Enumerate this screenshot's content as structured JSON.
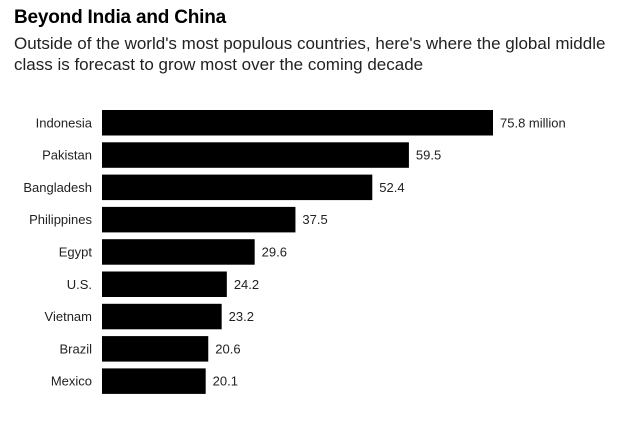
{
  "chart_data": {
    "type": "bar",
    "orientation": "horizontal",
    "title": "Beyond India and China",
    "subtitle": "Outside of the world's most populous countries, here's where the global middle class is forecast to grow most over the coming decade",
    "categories": [
      "Indonesia",
      "Pakistan",
      "Bangladesh",
      "Philippines",
      "Egypt",
      "U.S.",
      "Vietnam",
      "Brazil",
      "Mexico"
    ],
    "values": [
      75.8,
      59.5,
      52.4,
      37.5,
      29.6,
      24.2,
      23.2,
      20.6,
      20.1
    ],
    "value_labels": [
      "75.8 million",
      "59.5",
      "52.4",
      "37.5",
      "29.6",
      "24.2",
      "23.2",
      "20.6",
      "20.1"
    ],
    "grid": false,
    "legend": "none",
    "bar_color": "#000000"
  }
}
